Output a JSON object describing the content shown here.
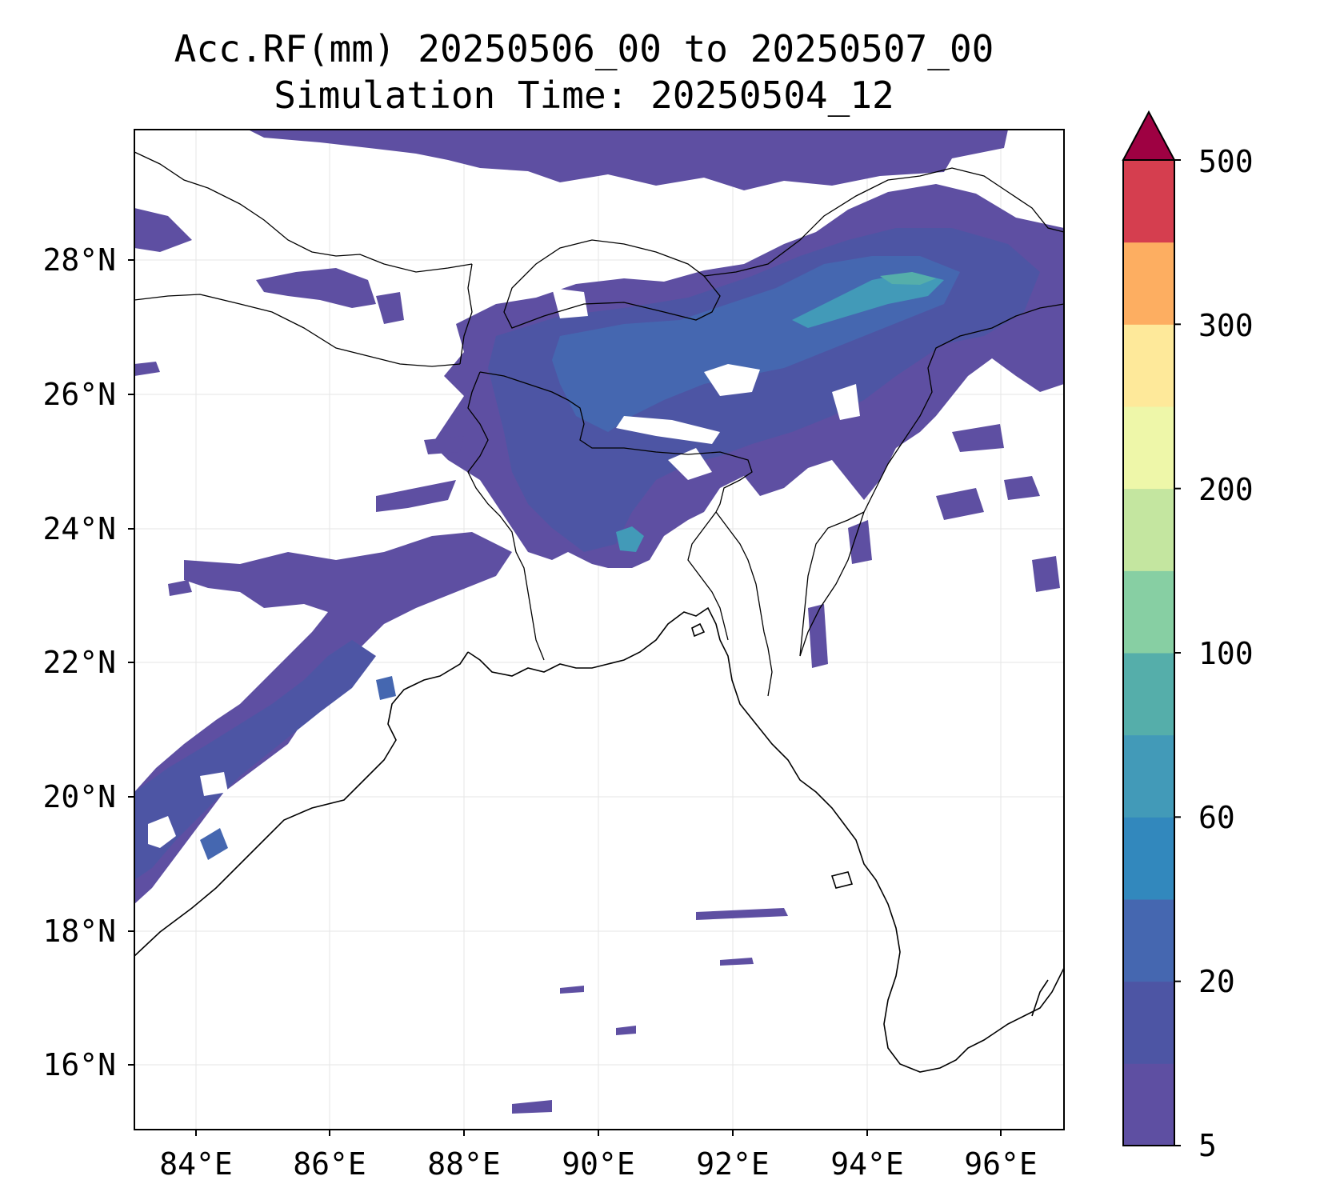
{
  "title_line1": "Acc.RF(mm) 20250506_00 to 20250507_00",
  "title_line2": "Simulation Time: 20250504_12",
  "map": {
    "type": "filled-contour",
    "lon_range": [
      83.1,
      96.95
    ],
    "lat_range": [
      15.0,
      29.95
    ],
    "lon_ticks": [
      "84°E",
      "86°E",
      "88°E",
      "90°E",
      "92°E",
      "94°E",
      "96°E"
    ],
    "lat_ticks": [
      "16°N",
      "18°N",
      "20°N",
      "22°N",
      "24°N",
      "26°N",
      "28°N"
    ],
    "grid": true,
    "coastline": true,
    "country_borders": true
  },
  "colorbar": {
    "orientation": "vertical",
    "placement": "right",
    "extend": "max",
    "tick_labels": [
      "5",
      "20",
      "60",
      "100",
      "200",
      "300",
      "500"
    ],
    "colors": [
      "#5e4fa2",
      "#4d55a4",
      "#4567b0",
      "#3288bd",
      "#429ab8",
      "#55aeaa",
      "#87cfa3",
      "#c4e6a0",
      "#eef7a9",
      "#fee99a",
      "#fdae61",
      "#d53e4f"
    ],
    "extend_color": "#9e0142"
  }
}
